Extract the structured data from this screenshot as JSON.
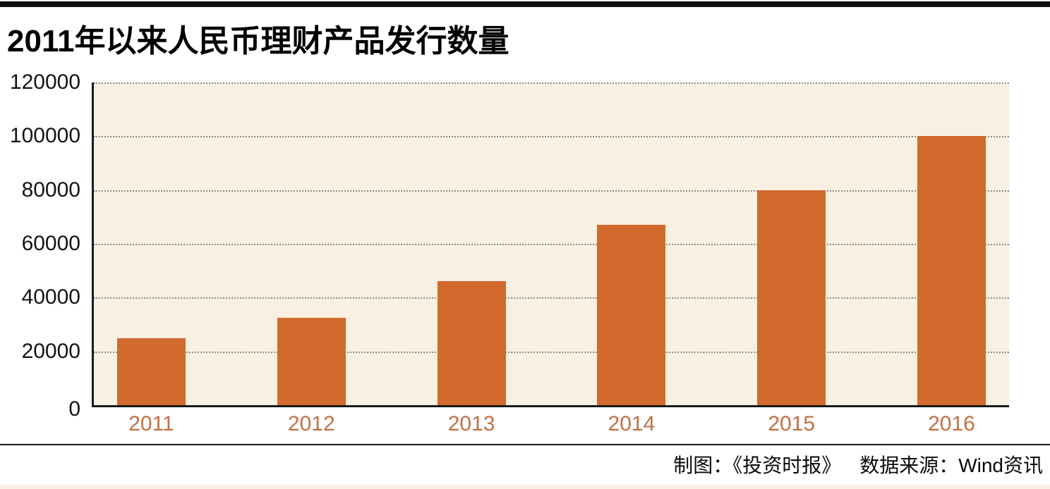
{
  "page": {
    "top_bar_color": "#0e0e0e",
    "separator_color": "#1a1a1a",
    "bottom_strip_color": "#fbf1e2"
  },
  "header": {
    "title": "2011年以来人民币理财产品发行数量"
  },
  "chart_data": {
    "type": "bar",
    "title": "2011年以来人民币理财产品发行数量",
    "categories": [
      "2011",
      "2012",
      "2013",
      "2014",
      "2015",
      "2016"
    ],
    "values": [
      25000,
      32500,
      46000,
      67000,
      80000,
      100000
    ],
    "xlabel": "",
    "ylabel": "",
    "ylim": [
      0,
      120000
    ],
    "ytick_interval": 20000,
    "ytick_labels": [
      "120000",
      "100000",
      "80000",
      "60000",
      "40000",
      "20000",
      "0"
    ],
    "grid": "horizontal-dotted",
    "legend": "none",
    "plot_bg_color": "#faf0e2",
    "bar_color": "#d2692d",
    "axis_color": "#1a1a1a",
    "gridline_color": "#6a6a6a",
    "xtick_label_color": "#c36f42",
    "ytick_label_color": "#141414"
  },
  "footer": {
    "credit": "制图：《投资时报》",
    "source": "数据来源：Wind资讯"
  }
}
